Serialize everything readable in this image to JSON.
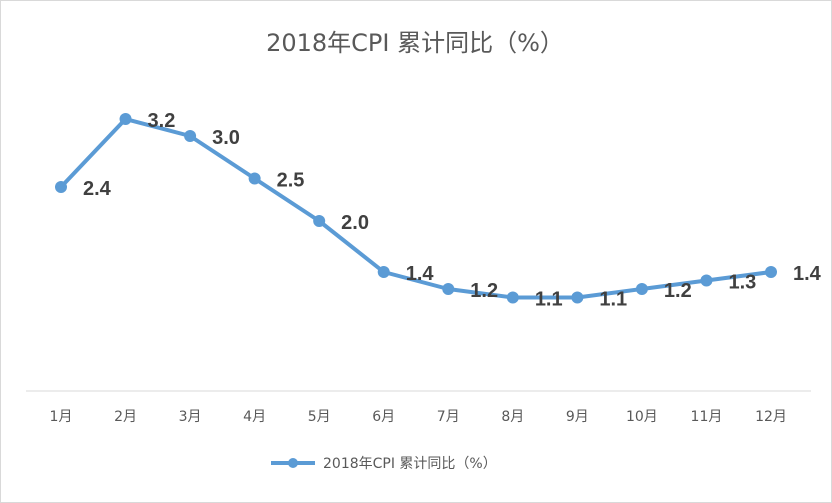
{
  "chart_data": {
    "type": "line",
    "title": "2018年CPI 累计同比（%）",
    "xlabel": "",
    "ylabel": "",
    "categories": [
      "1月",
      "2月",
      "3月",
      "4月",
      "5月",
      "6月",
      "7月",
      "8月",
      "9月",
      "10月",
      "11月",
      "12月"
    ],
    "series": [
      {
        "name": "2018年CPI 累计同比（%）",
        "values": [
          2.4,
          3.2,
          3.0,
          2.5,
          2.0,
          1.4,
          1.2,
          1.1,
          1.1,
          1.2,
          1.3,
          1.4
        ],
        "labels": [
          "2.4",
          "3.2",
          "3.0",
          "2.5",
          "2.0",
          "1.4",
          "1.2",
          "1.1",
          "1.1",
          "1.2",
          "1.3",
          "1.4"
        ],
        "color": "#5b9bd5"
      }
    ],
    "ylim": [
      0,
      3.6
    ],
    "grid": false,
    "legend": "bottom",
    "show_y_axis": false
  }
}
